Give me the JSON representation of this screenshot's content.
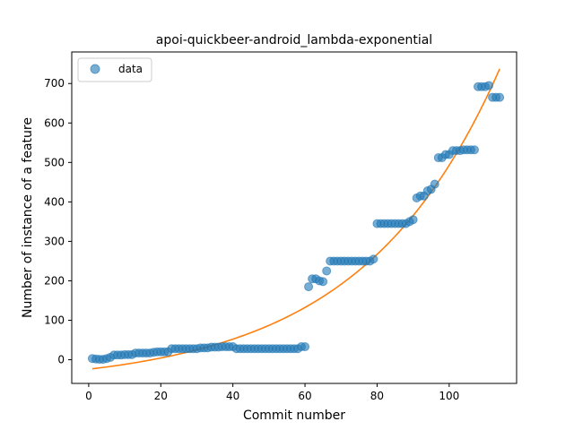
{
  "chart_data": {
    "type": "scatter",
    "title": "apoi-quickbeer-android_lambda-exponential",
    "xlabel": "Commit number",
    "ylabel": "Number of instance of a feature",
    "xlim": [
      -4.7,
      118.7
    ],
    "ylim": [
      -60,
      780
    ],
    "xticks": [
      0,
      20,
      40,
      60,
      80,
      100
    ],
    "yticks": [
      0,
      100,
      200,
      300,
      400,
      500,
      600,
      700
    ],
    "legend": {
      "position": "top-left",
      "entries": [
        "data"
      ]
    },
    "grid": false,
    "colors": {
      "data": "#1f77b4",
      "fit": "#ff7f0e"
    },
    "series": [
      {
        "name": "data",
        "kind": "scatter",
        "x": [
          1,
          2,
          3,
          4,
          5,
          6,
          7,
          8,
          9,
          10,
          11,
          12,
          13,
          14,
          15,
          16,
          17,
          18,
          19,
          20,
          21,
          22,
          23,
          24,
          25,
          26,
          27,
          28,
          29,
          30,
          31,
          32,
          33,
          34,
          35,
          36,
          37,
          38,
          39,
          40,
          41,
          42,
          43,
          44,
          45,
          46,
          47,
          48,
          49,
          50,
          51,
          52,
          53,
          54,
          55,
          56,
          57,
          58,
          59,
          60,
          61,
          62,
          63,
          64,
          65,
          66,
          67,
          68,
          69,
          70,
          71,
          72,
          73,
          74,
          75,
          76,
          77,
          78,
          79,
          80,
          81,
          82,
          83,
          84,
          85,
          86,
          87,
          88,
          89,
          90,
          91,
          92,
          93,
          94,
          95,
          96,
          97,
          98,
          99,
          100,
          101,
          102,
          103,
          104,
          105,
          106,
          107,
          108,
          109,
          110,
          111,
          112,
          113,
          114
        ],
        "y": [
          3,
          2,
          1,
          1,
          3,
          6,
          12,
          12,
          12,
          13,
          13,
          13,
          17,
          17,
          17,
          17,
          17,
          19,
          20,
          20,
          20,
          20,
          28,
          28,
          28,
          28,
          28,
          28,
          28,
          28,
          30,
          30,
          30,
          32,
          32,
          32,
          33,
          33,
          33,
          33,
          28,
          28,
          28,
          28,
          28,
          28,
          28,
          28,
          28,
          28,
          28,
          28,
          28,
          28,
          28,
          28,
          28,
          28,
          33,
          33,
          185,
          205,
          205,
          200,
          198,
          225,
          250,
          250,
          250,
          250,
          250,
          250,
          250,
          250,
          250,
          250,
          250,
          250,
          255,
          345,
          345,
          345,
          345,
          345,
          345,
          345,
          345,
          345,
          350,
          355,
          410,
          415,
          415,
          428,
          432,
          445,
          512,
          512,
          520,
          520,
          530,
          530,
          530,
          532,
          532,
          532,
          532,
          692,
          692,
          692,
          695,
          665,
          665,
          665
        ]
      }
    ],
    "fit_label": ""
  }
}
